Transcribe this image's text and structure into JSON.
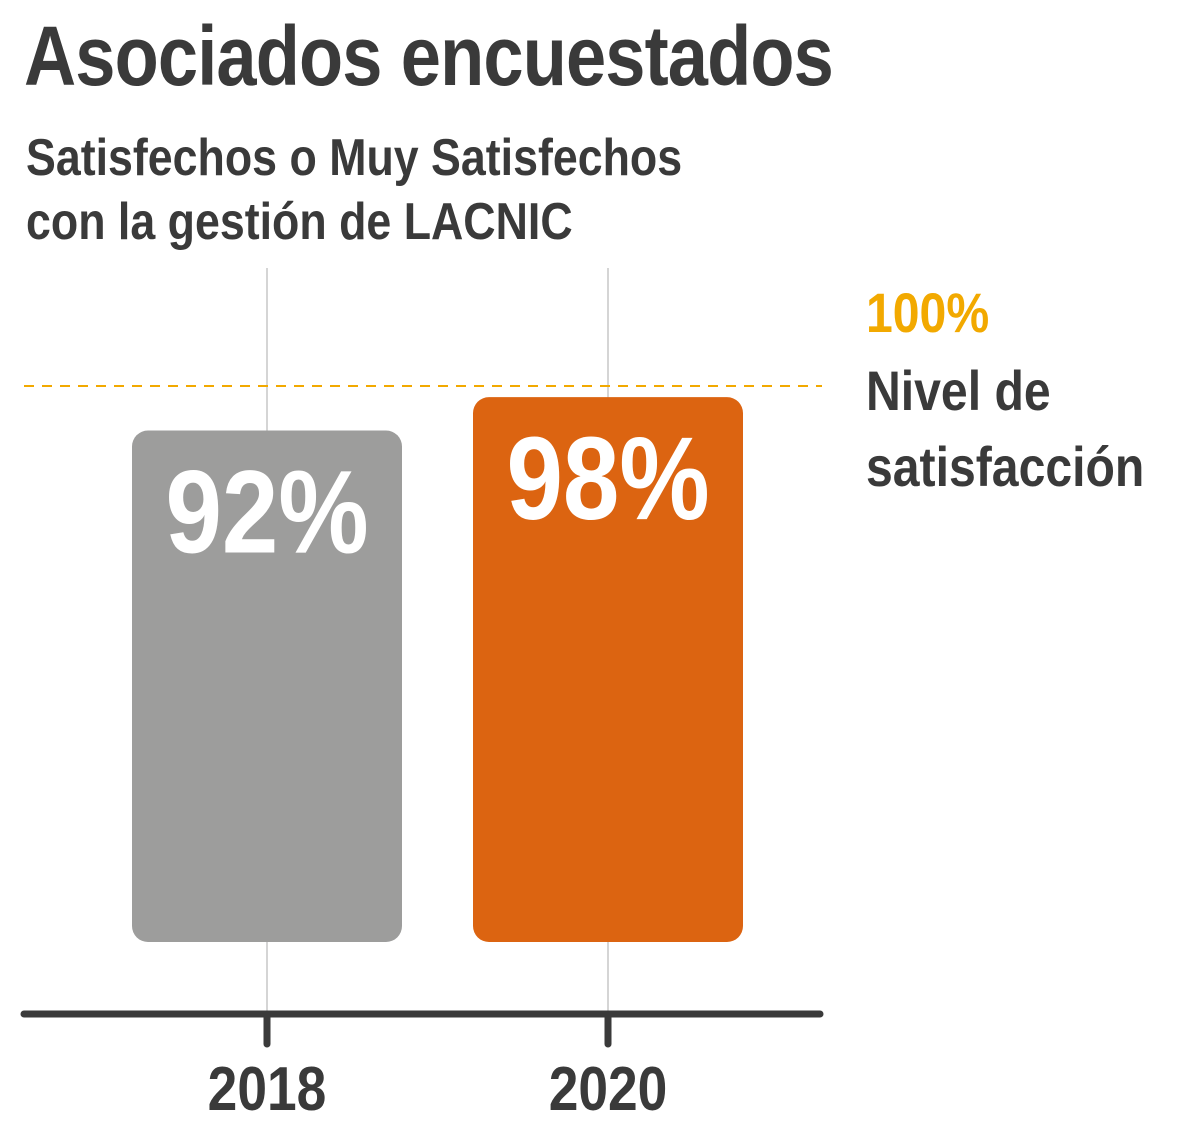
{
  "chart_data": {
    "type": "bar",
    "title": "Asociados encuestados",
    "subtitle": [
      "Satisfechos o Muy Satisfechos",
      "con la gestión de LACNIC"
    ],
    "categories": [
      "2018",
      "2020"
    ],
    "values": [
      92,
      98
    ],
    "value_labels": [
      "92%",
      "98%"
    ],
    "ylim": [
      0,
      100
    ],
    "reference_line": {
      "value": 100,
      "label_value": "100%",
      "label_text": [
        "Nivel de",
        "satisfacción"
      ]
    },
    "grid": false,
    "colors": {
      "bars": [
        "#9d9d9c",
        "#dc6411"
      ],
      "reference": "#f2a900",
      "text": "#3a3a3a",
      "axis": "#3a3a3a",
      "guides": "#d5d5d5",
      "bar_label": "#ffffff"
    }
  }
}
